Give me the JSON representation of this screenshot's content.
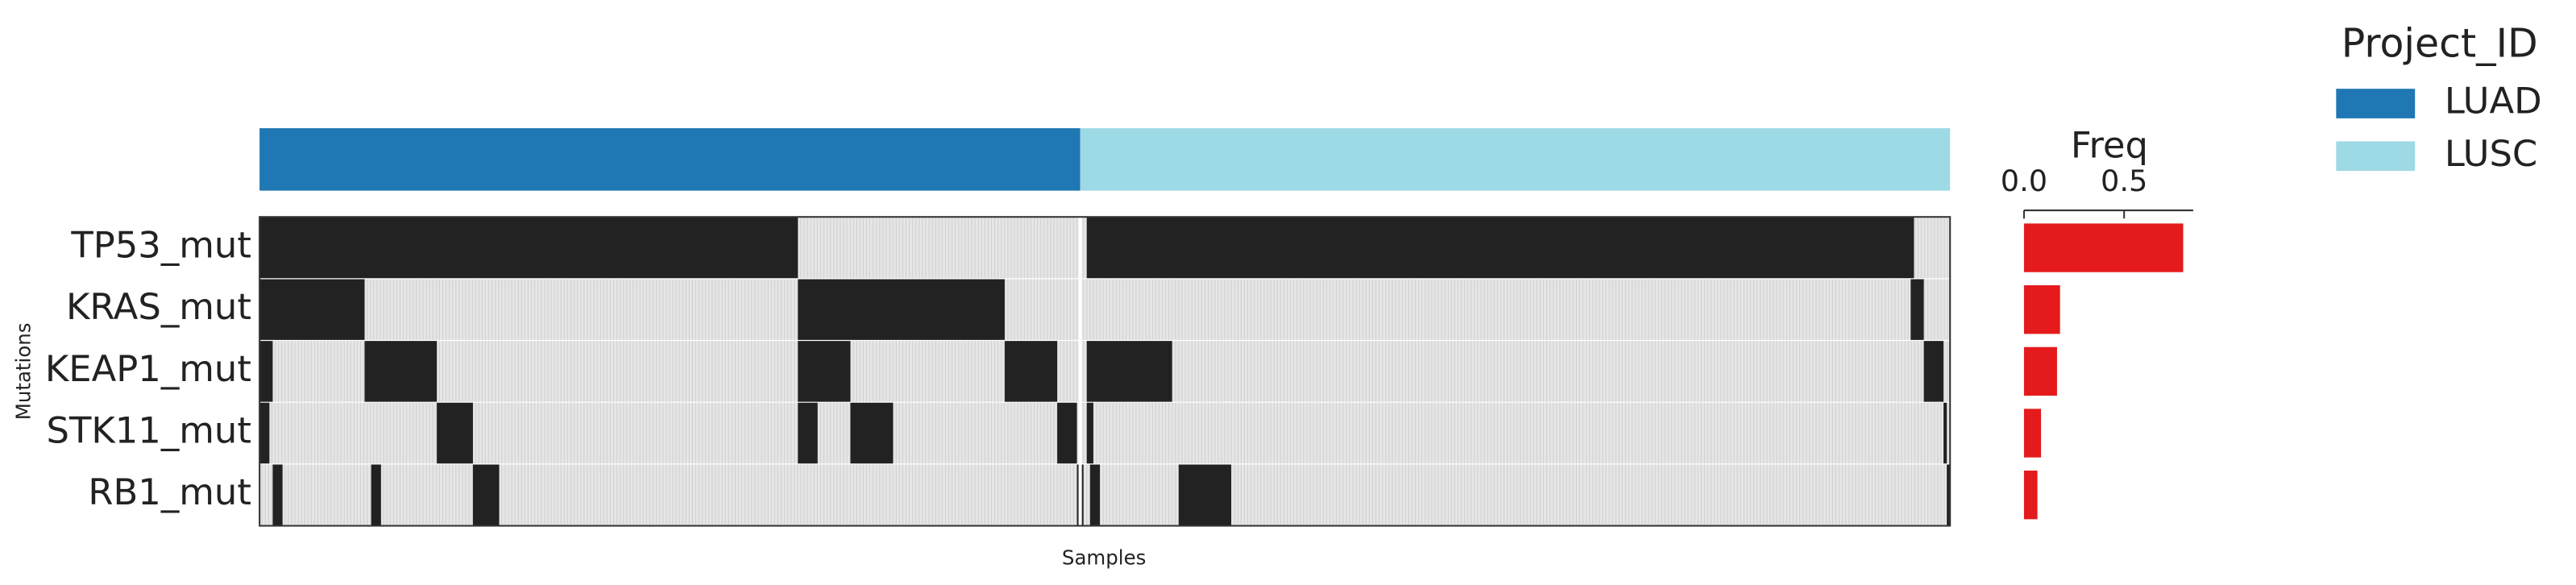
{
  "chart_data": {
    "type": "oncoprint",
    "y_label": "Mutations",
    "x_label": "Samples",
    "n_samples": 515,
    "mutated_color": "#222222",
    "background_color": "#e6e6e6",
    "rows": [
      {
        "name": "TP53_mut",
        "mutated": [
          [
            0,
            164
          ],
          [
            252,
            504
          ]
        ]
      },
      {
        "name": "KRAS_mut",
        "mutated": [
          [
            0,
            32
          ],
          [
            164,
            227
          ],
          [
            503,
            507
          ]
        ]
      },
      {
        "name": "KEAP1_mut",
        "mutated": [
          [
            0,
            4
          ],
          [
            32,
            54
          ],
          [
            164,
            180
          ],
          [
            227,
            243
          ],
          [
            252,
            278
          ],
          [
            507,
            513
          ]
        ]
      },
      {
        "name": "STK11_mut",
        "mutated": [
          [
            0,
            3
          ],
          [
            54,
            65
          ],
          [
            164,
            170
          ],
          [
            180,
            193
          ],
          [
            243,
            249
          ],
          [
            252,
            254
          ],
          [
            513,
            514
          ]
        ]
      },
      {
        "name": "RB1_mut",
        "mutated": [
          [
            4,
            7
          ],
          [
            34,
            37
          ],
          [
            65,
            73
          ],
          [
            249,
            251
          ],
          [
            253,
            256
          ],
          [
            280,
            296
          ],
          [
            514,
            515
          ]
        ]
      }
    ],
    "annotation": {
      "legend_title": "Project_ID",
      "groups": [
        {
          "name": "LUAD",
          "color": "#1f77b4",
          "range": [
            0,
            250
          ]
        },
        {
          "name": "LUSC",
          "color": "#9edae5",
          "range": [
            250,
            515
          ]
        }
      ]
    },
    "freq": {
      "title": "Freq",
      "color": "#e41a1c",
      "values": [
        0.795,
        0.18,
        0.165,
        0.085,
        0.067
      ],
      "xlim": [
        0,
        0.845
      ],
      "xticks": [
        {
          "value": 0,
          "label": "0.0"
        },
        0.5
      ]
    }
  }
}
